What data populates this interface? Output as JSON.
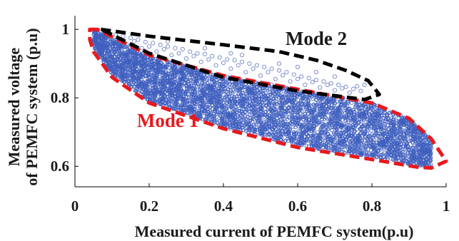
{
  "chart_data": {
    "type": "scatter",
    "title": "",
    "xlabel": "Measured current of PEMFC system(p.u)",
    "ylabel": "Measured voltage of PEMFC system (p.u)",
    "ylabel_lines": [
      "Measured voltage",
      "of PEMFC system (p.u)"
    ],
    "xlim": [
      0,
      1
    ],
    "ylim": [
      0.54,
      1.04
    ],
    "x_ticks": [
      0,
      0.2,
      0.4,
      0.6,
      0.8,
      1
    ],
    "x_tick_labels": [
      "0",
      "0.2",
      "0.4",
      "0.6",
      "0.8",
      "1"
    ],
    "y_ticks": [
      0.6,
      0.8,
      1
    ],
    "y_tick_labels": [
      "0.6",
      "0.8",
      "1"
    ],
    "grid": false,
    "colors": {
      "points": "#3f5fbf",
      "mode1_outline": "#e8191e",
      "mode2_outline": "#000000",
      "mode1_label": "#e8191e",
      "mode2_label": "#1a1a1a"
    },
    "regions": [
      {
        "label": "Mode 1",
        "description_points_fill": true,
        "outline": [
          [
            0.04,
            1.0
          ],
          [
            0.06,
            1.0
          ],
          [
            0.2,
            0.925
          ],
          [
            0.4,
            0.865
          ],
          [
            0.6,
            0.825
          ],
          [
            0.8,
            0.785
          ],
          [
            0.9,
            0.74
          ],
          [
            0.96,
            0.68
          ],
          [
            1.0,
            0.615
          ],
          [
            0.96,
            0.595
          ],
          [
            0.92,
            0.598
          ],
          [
            0.8,
            0.62
          ],
          [
            0.6,
            0.655
          ],
          [
            0.4,
            0.71
          ],
          [
            0.2,
            0.785
          ],
          [
            0.1,
            0.86
          ],
          [
            0.05,
            0.935
          ],
          [
            0.04,
            0.97
          ]
        ]
      },
      {
        "label": "Mode 2",
        "outline": [
          [
            0.07,
            1.0
          ],
          [
            0.2,
            0.98
          ],
          [
            0.4,
            0.955
          ],
          [
            0.55,
            0.935
          ],
          [
            0.65,
            0.91
          ],
          [
            0.73,
            0.88
          ],
          [
            0.79,
            0.85
          ],
          [
            0.82,
            0.81
          ],
          [
            0.78,
            0.795
          ],
          [
            0.6,
            0.82
          ],
          [
            0.4,
            0.86
          ],
          [
            0.2,
            0.93
          ],
          [
            0.09,
            0.99
          ]
        ]
      }
    ],
    "upper_boundary": [
      [
        0.05,
        1.0
      ],
      [
        0.2,
        0.92
      ],
      [
        0.4,
        0.865
      ],
      [
        0.6,
        0.825
      ],
      [
        0.8,
        0.785
      ],
      [
        0.9,
        0.74
      ],
      [
        0.96,
        0.68
      ],
      [
        1.0,
        0.615
      ]
    ],
    "lower_boundary": [
      [
        0.05,
        0.945
      ],
      [
        0.1,
        0.87
      ],
      [
        0.2,
        0.79
      ],
      [
        0.4,
        0.715
      ],
      [
        0.6,
        0.66
      ],
      [
        0.8,
        0.625
      ],
      [
        0.9,
        0.605
      ],
      [
        0.96,
        0.598
      ]
    ],
    "mode2_points": [
      [
        0.09,
        0.992
      ],
      [
        0.11,
        0.985
      ],
      [
        0.13,
        0.98
      ],
      [
        0.15,
        0.975
      ],
      [
        0.17,
        0.97
      ],
      [
        0.19,
        0.963
      ],
      [
        0.21,
        0.96
      ],
      [
        0.23,
        0.955
      ],
      [
        0.25,
        0.95
      ],
      [
        0.27,
        0.945
      ],
      [
        0.29,
        0.942
      ],
      [
        0.31,
        0.935
      ],
      [
        0.33,
        0.93
      ],
      [
        0.35,
        0.928
      ],
      [
        0.37,
        0.922
      ],
      [
        0.39,
        0.918
      ],
      [
        0.41,
        0.912
      ],
      [
        0.43,
        0.91
      ],
      [
        0.45,
        0.905
      ],
      [
        0.47,
        0.9
      ],
      [
        0.49,
        0.895
      ],
      [
        0.51,
        0.89
      ],
      [
        0.53,
        0.885
      ],
      [
        0.55,
        0.88
      ],
      [
        0.57,
        0.875
      ],
      [
        0.59,
        0.868
      ],
      [
        0.61,
        0.862
      ],
      [
        0.63,
        0.858
      ],
      [
        0.65,
        0.852
      ],
      [
        0.67,
        0.848
      ],
      [
        0.69,
        0.842
      ],
      [
        0.71,
        0.838
      ],
      [
        0.73,
        0.832
      ],
      [
        0.75,
        0.826
      ],
      [
        0.77,
        0.82
      ],
      [
        0.14,
        0.955
      ],
      [
        0.18,
        0.945
      ],
      [
        0.22,
        0.935
      ],
      [
        0.26,
        0.925
      ],
      [
        0.3,
        0.915
      ],
      [
        0.34,
        0.905
      ],
      [
        0.38,
        0.895
      ],
      [
        0.42,
        0.885
      ],
      [
        0.46,
        0.875
      ],
      [
        0.5,
        0.865
      ],
      [
        0.54,
        0.855
      ],
      [
        0.58,
        0.848
      ],
      [
        0.62,
        0.838
      ],
      [
        0.66,
        0.83
      ],
      [
        0.7,
        0.822
      ],
      [
        0.74,
        0.815
      ],
      [
        0.12,
        0.97
      ],
      [
        0.16,
        0.965
      ],
      [
        0.2,
        0.95
      ],
      [
        0.24,
        0.942
      ],
      [
        0.28,
        0.93
      ],
      [
        0.32,
        0.922
      ],
      [
        0.36,
        0.912
      ],
      [
        0.4,
        0.902
      ],
      [
        0.44,
        0.895
      ],
      [
        0.48,
        0.885
      ],
      [
        0.52,
        0.875
      ],
      [
        0.56,
        0.866
      ],
      [
        0.6,
        0.855
      ],
      [
        0.64,
        0.846
      ],
      [
        0.68,
        0.838
      ],
      [
        0.72,
        0.828
      ],
      [
        0.76,
        0.834
      ],
      [
        0.78,
        0.838
      ],
      [
        0.35,
        0.945
      ],
      [
        0.45,
        0.925
      ],
      [
        0.55,
        0.9
      ],
      [
        0.65,
        0.875
      ],
      [
        0.25,
        0.965
      ],
      [
        0.42,
        0.93
      ],
      [
        0.6,
        0.89
      ],
      [
        0.7,
        0.862
      ]
    ],
    "annotations": [
      {
        "text": "Mode 1",
        "x": 0.25,
        "y": 0.715,
        "color": "#e8191e"
      },
      {
        "text": "Mode 2",
        "x": 0.65,
        "y": 0.955,
        "color": "#1a1a1a"
      }
    ]
  }
}
